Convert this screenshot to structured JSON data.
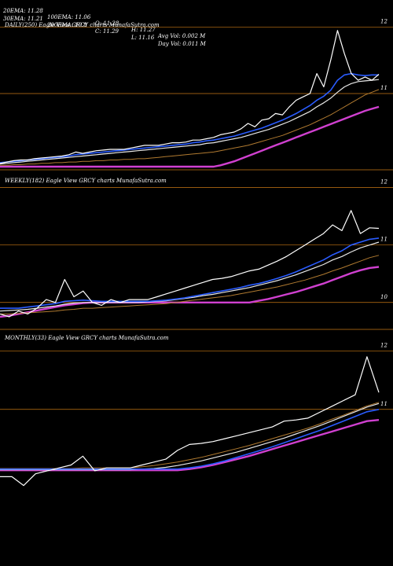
{
  "header": {
    "row1": [
      "20EMA: 11.28",
      "100EMA: 11.06",
      "O: 11.28",
      "H: 11.27",
      "Avg Vol: 0.002  M"
    ],
    "row2": [
      "30EMA: 11.21",
      "200EMA: 10.8",
      "C: 11.29",
      "L: 11.16",
      "Day Vol: 0.011  M"
    ]
  },
  "colors": {
    "background": "#000000",
    "price": "#ffffff",
    "ema20": "#2a5cff",
    "ema30": "#e8e8e8",
    "ema100": "#b07a30",
    "ema200": "#d040d0",
    "level_line": "#c87814",
    "divider": "#c87814"
  },
  "chart_data": [
    {
      "type": "line",
      "title": "DAILY(250) Eagle  View  GRCY charts MunafaSutra.com",
      "ylim": [
        9.9,
        12.1
      ],
      "level_lines": [
        12.0,
        11.0
      ],
      "tick_labels": [
        "12",
        "11"
      ],
      "grid": false,
      "series": [
        {
          "key": "price",
          "values": [
            9.95,
            9.97,
            9.99,
            10.0,
            10.0,
            10.02,
            10.03,
            10.04,
            10.05,
            10.06,
            10.08,
            10.12,
            10.1,
            10.12,
            10.14,
            10.15,
            10.16,
            10.16,
            10.16,
            10.18,
            10.2,
            10.22,
            10.22,
            10.22,
            10.24,
            10.26,
            10.26,
            10.27,
            10.3,
            10.3,
            10.32,
            10.34,
            10.38,
            10.4,
            10.42,
            10.47,
            10.55,
            10.5,
            10.6,
            10.62,
            10.7,
            10.68,
            10.8,
            10.9,
            10.95,
            11.0,
            11.3,
            11.1,
            11.5,
            11.95,
            11.6,
            11.3,
            11.2,
            11.25,
            11.2,
            11.29
          ]
        },
        {
          "key": "ema20",
          "values": [
            9.96,
            9.97,
            9.98,
            9.99,
            10.0,
            10.01,
            10.02,
            10.03,
            10.04,
            10.05,
            10.06,
            10.08,
            10.09,
            10.1,
            10.11,
            10.12,
            10.13,
            10.14,
            10.15,
            10.16,
            10.17,
            10.18,
            10.19,
            10.2,
            10.21,
            10.22,
            10.23,
            10.24,
            10.26,
            10.27,
            10.29,
            10.3,
            10.32,
            10.34,
            10.36,
            10.39,
            10.42,
            10.45,
            10.48,
            10.52,
            10.56,
            10.6,
            10.65,
            10.7,
            10.76,
            10.82,
            10.9,
            10.96,
            11.05,
            11.2,
            11.28,
            11.3,
            11.28,
            11.27,
            11.28,
            11.28
          ]
        },
        {
          "key": "ema30",
          "values": [
            9.94,
            9.95,
            9.96,
            9.97,
            9.98,
            9.99,
            10.0,
            10.01,
            10.02,
            10.03,
            10.04,
            10.05,
            10.06,
            10.07,
            10.08,
            10.09,
            10.1,
            10.11,
            10.12,
            10.13,
            10.14,
            10.15,
            10.16,
            10.17,
            10.18,
            10.19,
            10.2,
            10.21,
            10.22,
            10.23,
            10.25,
            10.26,
            10.28,
            10.3,
            10.32,
            10.34,
            10.37,
            10.4,
            10.43,
            10.46,
            10.5,
            10.54,
            10.58,
            10.63,
            10.68,
            10.73,
            10.8,
            10.86,
            10.93,
            11.02,
            11.1,
            11.15,
            11.18,
            11.19,
            11.2,
            11.21
          ]
        },
        {
          "key": "ema100",
          "values": [
            9.92,
            9.92,
            9.93,
            9.93,
            9.94,
            9.94,
            9.95,
            9.95,
            9.96,
            9.96,
            9.97,
            9.97,
            9.98,
            9.98,
            9.99,
            9.99,
            10.0,
            10.0,
            10.01,
            10.01,
            10.02,
            10.02,
            10.03,
            10.04,
            10.05,
            10.06,
            10.07,
            10.08,
            10.09,
            10.1,
            10.11,
            10.12,
            10.14,
            10.16,
            10.18,
            10.2,
            10.22,
            10.25,
            10.28,
            10.31,
            10.34,
            10.37,
            10.41,
            10.45,
            10.49,
            10.53,
            10.58,
            10.63,
            10.68,
            10.74,
            10.8,
            10.86,
            10.92,
            10.98,
            11.02,
            11.06
          ]
        },
        {
          "key": "ema200",
          "values": [
            9.9,
            9.9,
            9.9,
            9.9,
            9.9,
            9.9,
            9.9,
            9.9,
            9.9,
            9.9,
            9.9,
            9.9,
            9.9,
            9.9,
            9.9,
            9.9,
            9.9,
            9.9,
            9.9,
            9.9,
            9.9,
            9.9,
            9.9,
            9.9,
            9.9,
            9.9,
            9.9,
            9.9,
            9.9,
            9.9,
            9.9,
            9.9,
            9.92,
            9.95,
            9.98,
            10.02,
            10.06,
            10.1,
            10.14,
            10.18,
            10.22,
            10.26,
            10.3,
            10.34,
            10.38,
            10.42,
            10.46,
            10.5,
            10.54,
            10.58,
            10.62,
            10.66,
            10.7,
            10.74,
            10.77,
            10.8
          ]
        }
      ]
    },
    {
      "type": "line",
      "title": "WEEKLY(182) Eagle  View  GRCY charts MunafaSutra.com",
      "ylim": [
        9.6,
        12.2
      ],
      "level_lines": [
        12.0,
        11.0,
        10.0
      ],
      "tick_labels": [
        "12",
        "11",
        "10"
      ],
      "grid": false,
      "series": [
        {
          "key": "price",
          "values": [
            9.8,
            9.75,
            9.85,
            9.8,
            9.9,
            10.05,
            10.0,
            10.4,
            10.1,
            10.2,
            10.0,
            9.95,
            10.05,
            10.0,
            10.05,
            10.05,
            10.05,
            10.1,
            10.15,
            10.2,
            10.25,
            10.3,
            10.35,
            10.4,
            10.42,
            10.45,
            10.5,
            10.55,
            10.58,
            10.65,
            10.72,
            10.8,
            10.9,
            11.0,
            11.1,
            11.2,
            11.35,
            11.25,
            11.6,
            11.2,
            11.3,
            11.29
          ]
        },
        {
          "key": "ema20",
          "values": [
            9.9,
            9.9,
            9.9,
            9.92,
            9.94,
            9.96,
            9.98,
            10.02,
            10.03,
            10.04,
            10.03,
            10.02,
            10.02,
            10.02,
            10.02,
            10.02,
            10.02,
            10.03,
            10.04,
            10.06,
            10.08,
            10.11,
            10.14,
            10.17,
            10.2,
            10.23,
            10.26,
            10.3,
            10.33,
            10.37,
            10.42,
            10.47,
            10.53,
            10.6,
            10.67,
            10.74,
            10.83,
            10.9,
            11.0,
            11.05,
            11.1,
            11.12
          ]
        },
        {
          "key": "ema30",
          "values": [
            9.85,
            9.86,
            9.87,
            9.88,
            9.9,
            9.92,
            9.94,
            9.97,
            9.99,
            10.0,
            10.0,
            10.0,
            10.0,
            10.0,
            10.0,
            10.0,
            10.01,
            10.02,
            10.03,
            10.05,
            10.07,
            10.09,
            10.12,
            10.14,
            10.17,
            10.2,
            10.23,
            10.26,
            10.3,
            10.34,
            10.38,
            10.43,
            10.48,
            10.54,
            10.6,
            10.66,
            10.74,
            10.8,
            10.88,
            10.95,
            11.0,
            11.05
          ]
        },
        {
          "key": "ema100",
          "values": [
            9.8,
            9.8,
            9.81,
            9.82,
            9.83,
            9.84,
            9.85,
            9.87,
            9.88,
            9.9,
            9.9,
            9.91,
            9.92,
            9.93,
            9.94,
            9.95,
            9.96,
            9.97,
            9.98,
            10.0,
            10.02,
            10.04,
            10.06,
            10.08,
            10.1,
            10.12,
            10.15,
            10.18,
            10.21,
            10.24,
            10.27,
            10.31,
            10.35,
            10.39,
            10.44,
            10.49,
            10.55,
            10.6,
            10.66,
            10.72,
            10.78,
            10.82
          ]
        },
        {
          "key": "ema200",
          "values": [
            9.75,
            9.77,
            9.8,
            9.83,
            9.86,
            9.89,
            9.92,
            9.95,
            9.97,
            9.99,
            10.0,
            10.0,
            10.0,
            10.0,
            10.0,
            10.0,
            10.0,
            10.0,
            10.0,
            10.0,
            10.0,
            10.0,
            10.0,
            10.0,
            10.0,
            10.0,
            10.0,
            10.0,
            10.03,
            10.06,
            10.1,
            10.14,
            10.18,
            10.23,
            10.28,
            10.33,
            10.39,
            10.45,
            10.51,
            10.56,
            10.6,
            10.62
          ]
        }
      ]
    },
    {
      "type": "line",
      "title": "MONTHLY(33) Eagle  View  GRCY charts MunafaSutra.com",
      "ylim": [
        9.6,
        12.3
      ],
      "level_lines": [
        12.0,
        11.0
      ],
      "tick_labels": [
        "12",
        "11"
      ],
      "grid": false,
      "series": [
        {
          "key": "price",
          "values": [
            9.85,
            9.85,
            9.7,
            9.9,
            9.95,
            10.0,
            10.05,
            10.2,
            9.95,
            10.0,
            10.0,
            10.0,
            10.05,
            10.1,
            10.15,
            10.3,
            10.4,
            10.42,
            10.45,
            10.5,
            10.55,
            10.6,
            10.65,
            10.7,
            10.8,
            10.82,
            10.85,
            10.95,
            11.05,
            11.15,
            11.25,
            11.9,
            11.29
          ]
        },
        {
          "key": "ema20",
          "values": [
            9.98,
            9.98,
            9.98,
            9.98,
            9.98,
            9.98,
            9.98,
            9.98,
            9.98,
            9.98,
            9.98,
            9.98,
            9.98,
            9.98,
            9.98,
            9.98,
            10.0,
            10.03,
            10.07,
            10.12,
            10.18,
            10.24,
            10.3,
            10.36,
            10.43,
            10.5,
            10.57,
            10.64,
            10.72,
            10.8,
            10.88,
            10.96,
            11.0
          ]
        },
        {
          "key": "ema30",
          "values": [
            9.97,
            9.97,
            9.97,
            9.97,
            9.97,
            9.97,
            9.97,
            9.97,
            9.97,
            9.97,
            9.97,
            9.97,
            9.98,
            9.99,
            10.01,
            10.04,
            10.08,
            10.12,
            10.17,
            10.22,
            10.27,
            10.33,
            10.39,
            10.45,
            10.51,
            10.58,
            10.65,
            10.72,
            10.8,
            10.88,
            10.96,
            11.04,
            11.1
          ]
        },
        {
          "key": "ema100",
          "values": [
            9.99,
            9.99,
            9.99,
            9.99,
            9.99,
            9.99,
            9.99,
            10.0,
            10.0,
            10.0,
            10.0,
            10.0,
            10.02,
            10.04,
            10.07,
            10.1,
            10.14,
            10.18,
            10.23,
            10.28,
            10.33,
            10.38,
            10.44,
            10.5,
            10.56,
            10.62,
            10.68,
            10.75,
            10.83,
            10.9,
            10.98,
            11.06,
            11.12
          ]
        },
        {
          "key": "ema200",
          "values": [
            9.96,
            9.96,
            9.96,
            9.96,
            9.96,
            9.96,
            9.96,
            9.96,
            9.96,
            9.96,
            9.96,
            9.96,
            9.96,
            9.96,
            9.96,
            9.96,
            9.98,
            10.01,
            10.05,
            10.1,
            10.15,
            10.2,
            10.26,
            10.32,
            10.38,
            10.44,
            10.5,
            10.56,
            10.62,
            10.68,
            10.74,
            10.8,
            10.82
          ]
        }
      ]
    }
  ]
}
